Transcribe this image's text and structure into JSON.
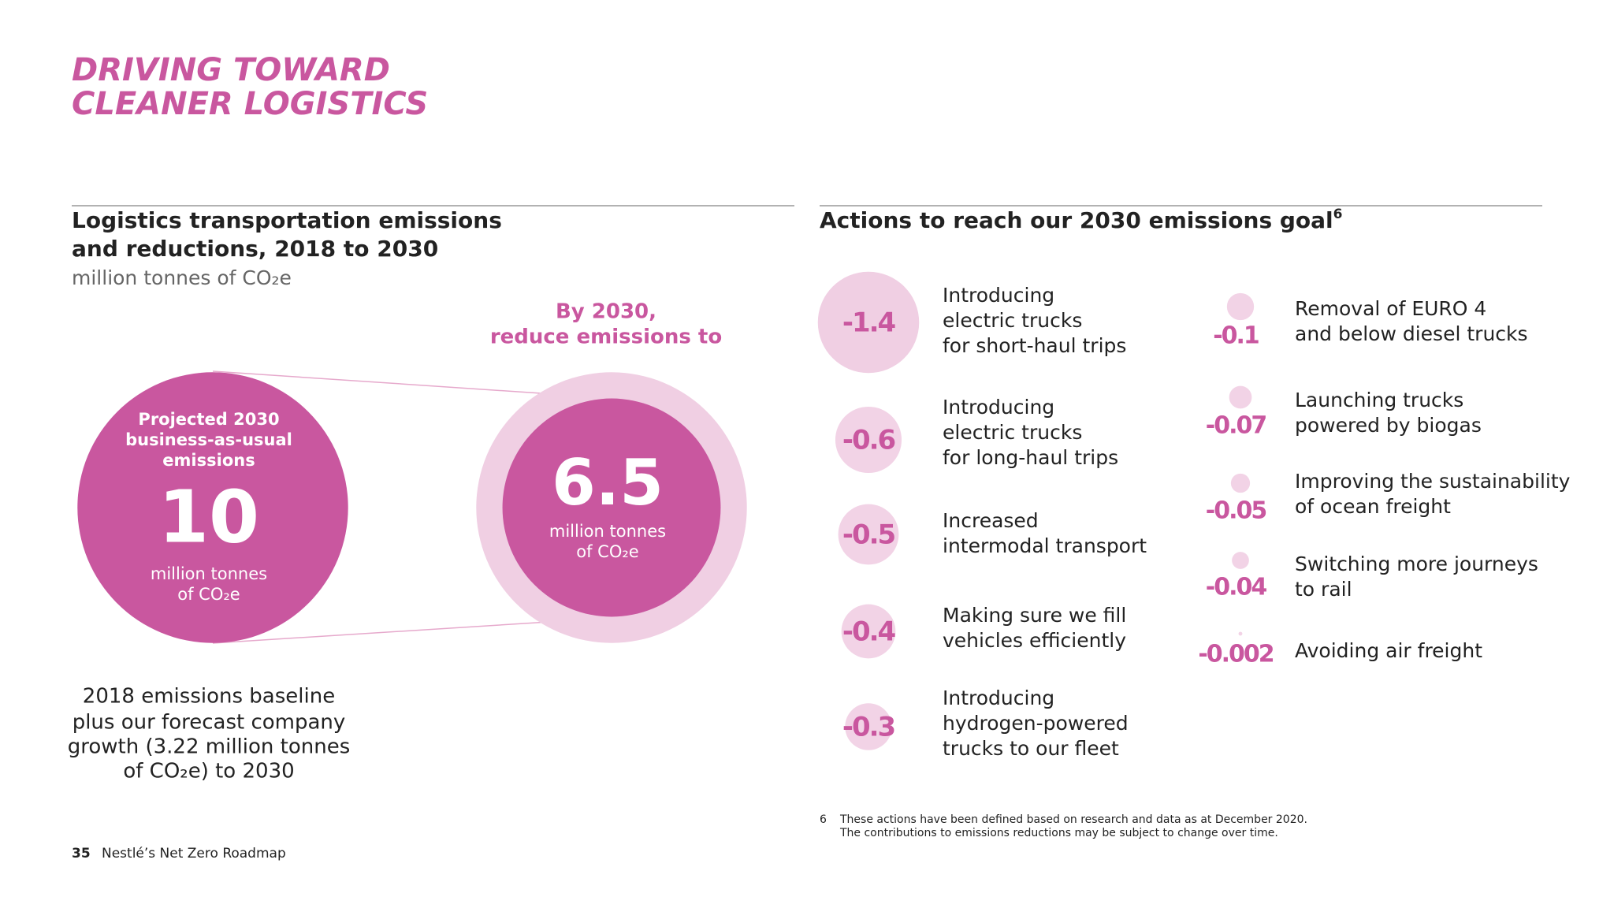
{
  "header": {
    "title": [
      "DRIVING TOWARD",
      "CLEANER LOGISTICS"
    ]
  },
  "left": {
    "heading": [
      "Logistics transportation emissions",
      "and reductions, 2018 to 2030"
    ],
    "unit": "million tonnes of CO₂e",
    "by2030": [
      "By 2030,",
      "reduce emissions to"
    ],
    "projected": {
      "label": [
        "Projected 2030",
        "business-as-usual",
        "emissions"
      ],
      "value": 10,
      "unit": [
        "million tonnes",
        "of CO₂e"
      ]
    },
    "target": {
      "value": 6.5,
      "unit": [
        "million tonnes",
        "of CO₂e"
      ]
    },
    "caption": [
      "2018 emissions baseline",
      "plus our forecast company",
      "growth (3.22 million tonnes",
      "of CO₂e) to 2030"
    ]
  },
  "right": {
    "heading": "Actions to reach our 2030 emissions goal",
    "heading_note": "6",
    "actions": [
      {
        "value": -1.4,
        "label": [
          "Introducing",
          "electric trucks",
          "for short-haul trips"
        ]
      },
      {
        "value": -0.6,
        "label": [
          "Introducing",
          "electric trucks",
          "for long-haul trips"
        ]
      },
      {
        "value": -0.5,
        "label": [
          "Increased",
          "intermodal transport"
        ]
      },
      {
        "value": -0.4,
        "label": [
          "Making sure we fill",
          "vehicles efficiently"
        ]
      },
      {
        "value": -0.3,
        "label": [
          "Introducing",
          "hydrogen-powered",
          "trucks to our fleet"
        ]
      },
      {
        "value": -0.1,
        "label": [
          "Removal of EURO 4",
          "and below diesel trucks"
        ]
      },
      {
        "value": -0.07,
        "label": [
          "Launching trucks",
          "powered by biogas"
        ]
      },
      {
        "value": -0.05,
        "label": [
          "Improving the sustainability",
          "of ocean freight"
        ]
      },
      {
        "value": -0.04,
        "label": [
          "Switching more journeys",
          "to rail"
        ]
      },
      {
        "value": -0.002,
        "label": [
          "Avoiding air freight"
        ]
      }
    ]
  },
  "footnote": {
    "marker": "6",
    "lines": [
      "These actions have been defined based on research and data as at December 2020.",
      "The contributions to emissions reductions may be subject to change over time."
    ]
  },
  "footer": {
    "page": "35",
    "publication": "Nestlé’s Net Zero Roadmap"
  }
}
